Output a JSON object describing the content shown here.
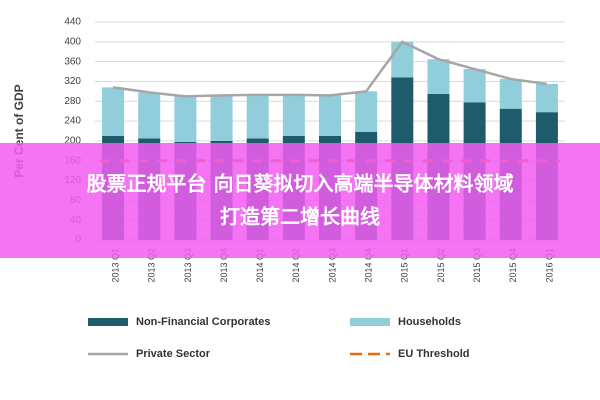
{
  "chart_data": {
    "type": "bar",
    "stacked": true,
    "y_label": "Per Cent of GDP",
    "categories": [
      "2013 Q1",
      "2013 Q2",
      "2013 Q3",
      "2013 Q4",
      "2014 Q1",
      "2014 Q2",
      "2014 Q3",
      "2014 Q4",
      "2015 Q1",
      "2015 Q2",
      "2015 Q3",
      "2015 Q4",
      "2016 Q1"
    ],
    "series": [
      {
        "name": "Non-Financial Corporates",
        "color": "#1f5c6b",
        "values": [
          210,
          205,
          198,
          200,
          205,
          210,
          210,
          218,
          328,
          295,
          278,
          265,
          258
        ]
      },
      {
        "name": "Households",
        "color": "#92cddc",
        "values": [
          98,
          93,
          92,
          92,
          88,
          83,
          82,
          82,
          72,
          70,
          67,
          60,
          57
        ]
      },
      {
        "name": "Private Sector",
        "type": "line",
        "color": "#a6a6a6",
        "values": [
          308,
          298,
          290,
          292,
          293,
          293,
          292,
          300,
          400,
          365,
          345,
          325,
          315
        ]
      },
      {
        "name": "EU Threshold",
        "type": "line",
        "dashed": true,
        "color": "#e46c0a",
        "values": [
          160,
          160,
          160,
          160,
          160,
          160,
          160,
          160,
          160,
          160,
          160,
          160,
          160
        ]
      }
    ],
    "ylim": [
      0,
      440
    ],
    "yticks": [
      0,
      40,
      80,
      120,
      160,
      200,
      240,
      280,
      320,
      360,
      400,
      440
    ],
    "grid": true
  },
  "banner": {
    "lines": [
      "股票正规平台 向日葵拟切入高端半导体材料领域",
      "打造第二增长曲线"
    ],
    "color": "#f25cf2"
  }
}
